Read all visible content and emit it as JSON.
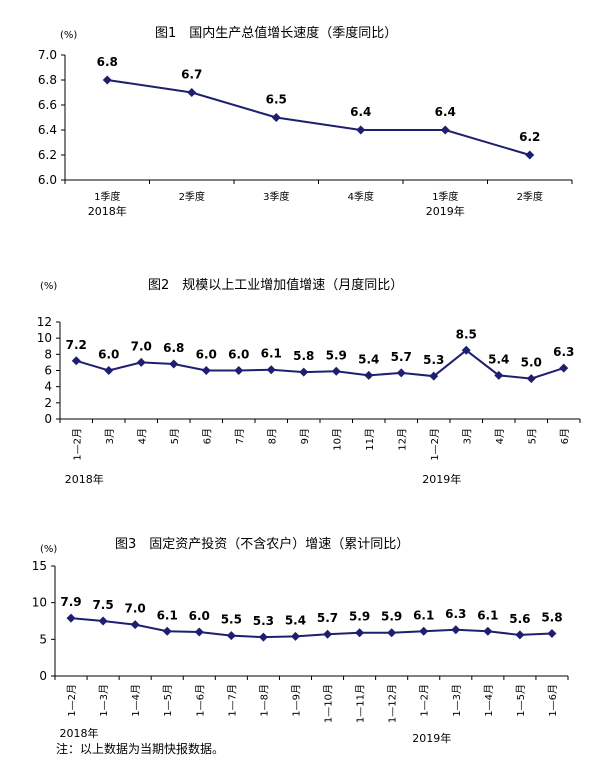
{
  "colors": {
    "series": "#1f1f70",
    "axis": "#000000"
  },
  "note": "注：以上数据为当期快报数据。",
  "chart_data": [
    {
      "type": "line",
      "title": "图1　国内生产总值增长速度（季度同比）",
      "unit": "(%)",
      "categories": [
        "1季度",
        "2季度",
        "3季度",
        "4季度",
        "1季度",
        "2季度"
      ],
      "year_labels": [
        "2018年",
        "2019年"
      ],
      "values": [
        6.8,
        6.7,
        6.5,
        6.4,
        6.4,
        6.2
      ],
      "value_labels": [
        "6.8",
        "6.7",
        "6.5",
        "6.4",
        "6.4",
        "6.2"
      ],
      "ylim": [
        6.0,
        7.0
      ],
      "yticks": [
        "6.0",
        "6.2",
        "6.4",
        "6.6",
        "6.8",
        "7.0"
      ],
      "grid": false
    },
    {
      "type": "line",
      "title": "图2　规模以上工业增加值增速（月度同比）",
      "unit": "(%)",
      "categories": [
        "1—2月",
        "3月",
        "4月",
        "5月",
        "6月",
        "7月",
        "8月",
        "9月",
        "10月",
        "11月",
        "12月",
        "1—2月",
        "3月",
        "4月",
        "5月",
        "6月"
      ],
      "year_labels": [
        "2018年",
        "2019年"
      ],
      "values": [
        7.2,
        6.0,
        7.0,
        6.8,
        6.0,
        6.0,
        6.1,
        5.8,
        5.9,
        5.4,
        5.7,
        5.3,
        8.5,
        5.4,
        5.0,
        6.3
      ],
      "value_labels": [
        "7.2",
        "6.0",
        "7.0",
        "6.8",
        "6.0",
        "6.0",
        "6.1",
        "5.8",
        "5.9",
        "5.4",
        "5.7",
        "5.3",
        "8.5",
        "5.4",
        "5.0",
        "6.3"
      ],
      "ylim": [
        0,
        12
      ],
      "yticks": [
        "0",
        "2",
        "4",
        "6",
        "8",
        "10",
        "12"
      ],
      "grid": false
    },
    {
      "type": "line",
      "title": "图3　固定资产投资（不含农户）增速（累计同比）",
      "unit": "(%)",
      "categories": [
        "1—2月",
        "1—3月",
        "1—4月",
        "1—5月",
        "1—6月",
        "1—7月",
        "1—8月",
        "1—9月",
        "1—10月",
        "1—11月",
        "1—12月",
        "1—2月",
        "1—3月",
        "1—4月",
        "1—5月",
        "1—6月"
      ],
      "year_labels": [
        "2018年",
        "2019年"
      ],
      "values": [
        7.9,
        7.5,
        7.0,
        6.1,
        6.0,
        5.5,
        5.3,
        5.4,
        5.7,
        5.9,
        5.9,
        6.1,
        6.3,
        6.1,
        5.6,
        5.8
      ],
      "value_labels": [
        "7.9",
        "7.5",
        "7.0",
        "6.1",
        "6.0",
        "5.5",
        "5.3",
        "5.4",
        "5.7",
        "5.9",
        "5.9",
        "6.1",
        "6.3",
        "6.1",
        "5.6",
        "5.8"
      ],
      "ylim": [
        0,
        15
      ],
      "yticks": [
        "0",
        "5",
        "10",
        "15"
      ],
      "grid": false
    }
  ]
}
